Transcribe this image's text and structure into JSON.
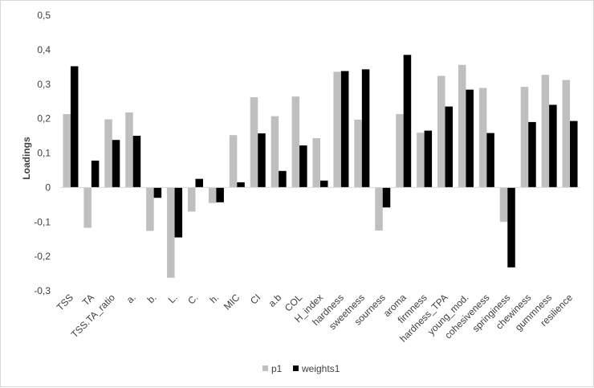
{
  "chart_data": {
    "type": "bar",
    "title": "",
    "xlabel": "",
    "ylabel": "Loadings",
    "ylim": [
      -0.3,
      0.5
    ],
    "yticks": [
      "0,5",
      "0,4",
      "0,3",
      "0,2",
      "0,1",
      "0",
      "-0,1",
      "-0,2",
      "-0,3"
    ],
    "ytick_values": [
      0.5,
      0.4,
      0.3,
      0.2,
      0.1,
      0,
      -0.1,
      -0.2,
      -0.3
    ],
    "grid": false,
    "legend_position": "bottom",
    "categories": [
      "TSS",
      "TA",
      "TSS.TA_ratio",
      "a.",
      "b.",
      "L.",
      "C.",
      "h.",
      "MIC",
      "CI",
      "a.b",
      "COL",
      "H_index",
      "hardness",
      "sweetness",
      "sourness",
      "aroma",
      "firmness",
      "hardness_TPA",
      "young_mod.",
      "cohesiveness",
      "springiness",
      "chewiness",
      "gummness",
      "resilience"
    ],
    "series": [
      {
        "name": "p1",
        "color": "#bfbfbf",
        "values": [
          0.213,
          -0.117,
          0.198,
          0.218,
          -0.126,
          -0.262,
          -0.07,
          -0.045,
          0.152,
          0.262,
          0.207,
          0.264,
          0.143,
          0.336,
          0.197,
          -0.125,
          0.213,
          0.159,
          0.324,
          0.356,
          0.289,
          -0.1,
          0.292,
          0.327,
          0.312
        ]
      },
      {
        "name": "weights1",
        "color": "#000000",
        "values": [
          0.352,
          0.078,
          0.138,
          0.15,
          -0.03,
          -0.145,
          0.025,
          -0.043,
          0.015,
          0.157,
          0.048,
          0.122,
          0.02,
          0.338,
          0.343,
          -0.058,
          0.385,
          0.165,
          0.235,
          0.284,
          0.158,
          -0.232,
          0.19,
          0.24,
          0.193
        ]
      }
    ]
  }
}
